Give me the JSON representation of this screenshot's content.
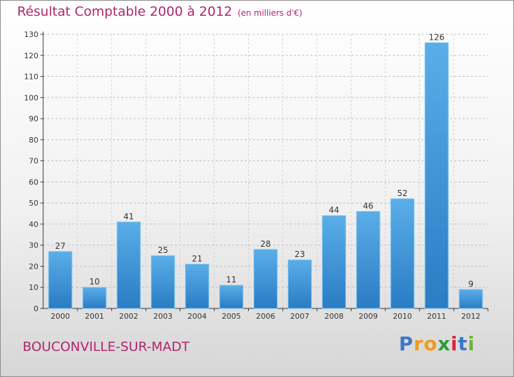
{
  "header": {
    "title": "Résultat Comptable 2000 à 2012",
    "subtitle": "(en milliers d'€)"
  },
  "footer": {
    "town": "BOUCONVILLE-SUR-MADT",
    "logo": [
      "P",
      "r",
      "o",
      "x",
      "i",
      "t",
      "i"
    ]
  },
  "colors": {
    "title": "#b0266e",
    "bar_top": "#5aaee8",
    "bar_bottom": "#2a7cc4",
    "logo_letters": [
      "#3a78c8",
      "#f19a1a",
      "#f19a1a",
      "#2f9a3a",
      "#d9283c",
      "#3a78c8",
      "#6db33f"
    ]
  },
  "chart_data": {
    "type": "bar",
    "categories": [
      "2000",
      "2001",
      "2002",
      "2003",
      "2004",
      "2005",
      "2006",
      "2007",
      "2008",
      "2009",
      "2010",
      "2011",
      "2012"
    ],
    "values": [
      27,
      10,
      41,
      25,
      21,
      11,
      28,
      23,
      44,
      46,
      52,
      126,
      9
    ],
    "title": "Résultat Comptable 2000 à 2012",
    "subtitle": "(en milliers d'€)",
    "xlabel": "",
    "ylabel": "",
    "ylim": [
      0,
      130
    ],
    "yticks": [
      0,
      10,
      20,
      30,
      40,
      50,
      60,
      70,
      80,
      90,
      100,
      110,
      120,
      130
    ],
    "grid": true,
    "legend": "none"
  }
}
